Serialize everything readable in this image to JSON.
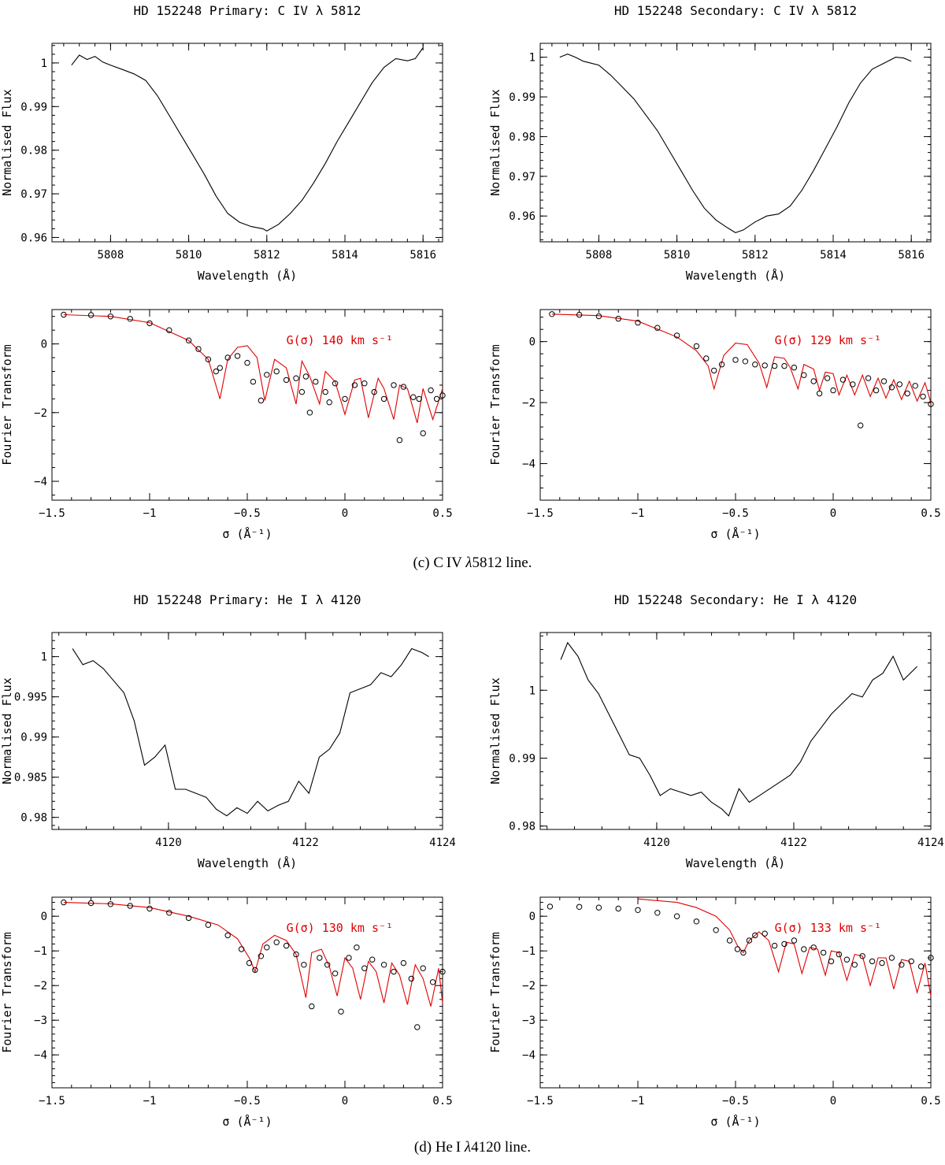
{
  "colors": {
    "axis": "#000000",
    "observed": "#000000",
    "model": "#e00000"
  },
  "captions": {
    "c": {
      "label": "(c)",
      "ion": "C IV",
      "lambda": "λ",
      "wavelength": "5812",
      "suffix": "line."
    },
    "d": {
      "label": "(d)",
      "ion": "He I",
      "lambda": "λ",
      "wavelength": "4120",
      "suffix": "line."
    }
  },
  "chart_data": [
    {
      "id": "c-primary-spec",
      "type": "line",
      "title": "HD 152248 Primary: C IV λ 5812",
      "xlabel": "Wavelength (Å)",
      "ylabel": "Normalised Flux",
      "xlim": [
        5806.5,
        5816.5
      ],
      "ylim": [
        0.959,
        1.0045
      ],
      "xticks": [
        5808,
        5810,
        5812,
        5814,
        5816
      ],
      "xtick_labels": [
        "5808",
        "5810",
        "5812",
        "5814",
        "5816"
      ],
      "yticks": [
        0.96,
        0.97,
        0.98,
        0.99,
        1
      ],
      "ytick_labels": [
        "0.96",
        "0.97",
        "0.98",
        "0.99",
        "1"
      ],
      "x": [
        5807.0,
        5807.2,
        5807.4,
        5807.6,
        5807.8,
        5808.0,
        5808.3,
        5808.6,
        5808.9,
        5809.2,
        5809.5,
        5809.8,
        5810.1,
        5810.4,
        5810.7,
        5811.0,
        5811.3,
        5811.6,
        5811.9,
        5812.0,
        5812.3,
        5812.6,
        5812.9,
        5813.2,
        5813.5,
        5813.8,
        5814.1,
        5814.4,
        5814.7,
        5815.0,
        5815.3,
        5815.6,
        5815.8,
        5816.0
      ],
      "y": [
        0.9995,
        1.0018,
        1.0008,
        1.0015,
        1.0002,
        0.9995,
        0.9985,
        0.9975,
        0.996,
        0.9925,
        0.988,
        0.9835,
        0.979,
        0.9745,
        0.9695,
        0.9655,
        0.9635,
        0.9625,
        0.962,
        0.9615,
        0.963,
        0.9655,
        0.9685,
        0.9725,
        0.977,
        0.982,
        0.9865,
        0.991,
        0.9955,
        0.999,
        1.001,
        1.0005,
        1.001,
        1.0035
      ],
      "series_color": "observed"
    },
    {
      "id": "c-secondary-spec",
      "type": "line",
      "title": "HD 152248 Secondary: C IV λ 5812",
      "xlabel": "Wavelength (Å)",
      "ylabel": "Normalised Flux",
      "xlim": [
        5806.5,
        5816.5
      ],
      "ylim": [
        0.9535,
        1.0035
      ],
      "xticks": [
        5808,
        5810,
        5812,
        5814,
        5816
      ],
      "xtick_labels": [
        "5808",
        "5810",
        "5812",
        "5814",
        "5816"
      ],
      "yticks": [
        0.96,
        0.97,
        0.98,
        0.99,
        1
      ],
      "ytick_labels": [
        "0.96",
        "0.97",
        "0.98",
        "0.99",
        "1"
      ],
      "x": [
        5807.0,
        5807.2,
        5807.4,
        5807.6,
        5807.8,
        5808.0,
        5808.3,
        5808.6,
        5808.9,
        5809.2,
        5809.5,
        5809.8,
        5810.1,
        5810.4,
        5810.7,
        5811.0,
        5811.3,
        5811.5,
        5811.7,
        5812.0,
        5812.3,
        5812.6,
        5812.9,
        5813.2,
        5813.5,
        5813.8,
        5814.1,
        5814.4,
        5814.7,
        5815.0,
        5815.3,
        5815.6,
        5815.8,
        5816.0
      ],
      "y": [
        1.0,
        1.0008,
        1.0,
        0.999,
        0.9985,
        0.998,
        0.9955,
        0.9925,
        0.9895,
        0.9855,
        0.9815,
        0.9765,
        0.9715,
        0.9665,
        0.962,
        0.959,
        0.957,
        0.9558,
        0.9565,
        0.9585,
        0.96,
        0.9605,
        0.9625,
        0.9665,
        0.9715,
        0.977,
        0.9825,
        0.9885,
        0.9935,
        0.997,
        0.9985,
        1.0,
        0.9998,
        0.999
      ],
      "series_color": "observed"
    },
    {
      "id": "c-primary-ft",
      "type": "scatter+line",
      "xlabel": "σ (Å⁻¹)",
      "ylabel": "Fourier Transform",
      "annotation": "G(σ) 140 km s⁻¹",
      "xlim": [
        -1.5,
        0.5
      ],
      "ylim": [
        -4.55,
        1.0
      ],
      "xticks": [
        -1.5,
        -1,
        -0.5,
        0,
        0.5
      ],
      "xtick_labels": [
        "−1.5",
        "−1",
        "−0.5",
        "0",
        "0.5"
      ],
      "yticks": [
        -4,
        -2,
        0
      ],
      "ytick_labels": [
        "−4",
        "−2",
        "0"
      ],
      "observed_x": [
        -1.44,
        -1.3,
        -1.2,
        -1.1,
        -1.0,
        -0.9,
        -0.8,
        -0.75,
        -0.7,
        -0.66,
        -0.64,
        -0.6,
        -0.55,
        -0.5,
        -0.47,
        -0.43,
        -0.4,
        -0.35,
        -0.3,
        -0.25,
        -0.22,
        -0.2,
        -0.18,
        -0.15,
        -0.1,
        -0.08,
        -0.05,
        0.0,
        0.05,
        0.1,
        0.15,
        0.2,
        0.25,
        0.28,
        0.3,
        0.35,
        0.38,
        0.4,
        0.44,
        0.47,
        0.5
      ],
      "observed_y": [
        0.85,
        0.84,
        0.8,
        0.73,
        0.6,
        0.4,
        0.1,
        -0.15,
        -0.45,
        -0.8,
        -0.7,
        -0.4,
        -0.35,
        -0.55,
        -1.1,
        -1.65,
        -0.9,
        -0.8,
        -1.05,
        -1.0,
        -1.4,
        -0.95,
        -2.0,
        -1.1,
        -1.4,
        -1.7,
        -1.15,
        -1.6,
        -1.2,
        -1.15,
        -1.4,
        -1.6,
        -1.2,
        -2.8,
        -1.25,
        -1.55,
        -1.6,
        -2.6,
        -1.35,
        -1.6,
        -1.5
      ],
      "model_x": [
        -1.44,
        -1.2,
        -1.0,
        -0.8,
        -0.7,
        -0.64,
        -0.6,
        -0.55,
        -0.5,
        -0.45,
        -0.41,
        -0.36,
        -0.3,
        -0.25,
        -0.22,
        -0.18,
        -0.13,
        -0.1,
        -0.05,
        0.0,
        0.05,
        0.08,
        0.12,
        0.17,
        0.2,
        0.25,
        0.28,
        0.32,
        0.37,
        0.4,
        0.45,
        0.5
      ],
      "model_y": [
        0.85,
        0.8,
        0.62,
        0.1,
        -0.45,
        -1.6,
        -0.45,
        -0.1,
        -0.05,
        -0.4,
        -1.65,
        -0.45,
        -0.7,
        -1.75,
        -0.5,
        -0.95,
        -1.75,
        -0.8,
        -1.1,
        -2.05,
        -1.05,
        -1.0,
        -2.15,
        -1.0,
        -1.3,
        -2.2,
        -1.2,
        -1.3,
        -2.3,
        -1.3,
        -2.2,
        -1.3
      ],
      "legend": "model"
    },
    {
      "id": "c-secondary-ft",
      "type": "scatter+line",
      "xlabel": "σ (Å⁻¹)",
      "ylabel": "Fourier Transform",
      "annotation": "G(σ) 129 km s⁻¹",
      "xlim": [
        -1.5,
        0.5
      ],
      "ylim": [
        -5.2,
        1.05
      ],
      "xticks": [
        -1.5,
        -1,
        -0.5,
        0,
        0.5
      ],
      "xtick_labels": [
        "−1.5",
        "−1",
        "−0.5",
        "0",
        "0.5"
      ],
      "yticks": [
        -4,
        -2,
        0
      ],
      "ytick_labels": [
        "−4",
        "−2",
        "0"
      ],
      "observed_x": [
        -1.44,
        -1.3,
        -1.2,
        -1.1,
        -1.0,
        -0.9,
        -0.8,
        -0.7,
        -0.65,
        -0.61,
        -0.57,
        -0.5,
        -0.45,
        -0.4,
        -0.35,
        -0.3,
        -0.25,
        -0.2,
        -0.15,
        -0.1,
        -0.07,
        -0.03,
        0.0,
        0.05,
        0.1,
        0.14,
        0.18,
        0.22,
        0.26,
        0.3,
        0.34,
        0.38,
        0.42,
        0.46,
        0.5
      ],
      "observed_y": [
        0.9,
        0.88,
        0.83,
        0.75,
        0.62,
        0.45,
        0.2,
        -0.15,
        -0.55,
        -0.95,
        -0.75,
        -0.6,
        -0.65,
        -0.75,
        -0.78,
        -0.8,
        -0.8,
        -0.85,
        -1.1,
        -1.3,
        -1.7,
        -1.2,
        -1.6,
        -1.25,
        -1.4,
        -2.75,
        -1.2,
        -1.6,
        -1.3,
        -1.5,
        -1.4,
        -1.7,
        -1.45,
        -1.8,
        -2.05
      ],
      "model_x": [
        -1.44,
        -1.2,
        -1.0,
        -0.8,
        -0.7,
        -0.64,
        -0.61,
        -0.56,
        -0.5,
        -0.44,
        -0.38,
        -0.34,
        -0.3,
        -0.25,
        -0.22,
        -0.18,
        -0.15,
        -0.1,
        -0.07,
        -0.04,
        0.0,
        0.03,
        0.07,
        0.11,
        0.15,
        0.19,
        0.23,
        0.27,
        0.31,
        0.35,
        0.39,
        0.43,
        0.47,
        0.5
      ],
      "model_y": [
        0.9,
        0.85,
        0.67,
        0.15,
        -0.3,
        -0.8,
        -1.55,
        -0.45,
        -0.05,
        -0.1,
        -0.7,
        -1.5,
        -0.5,
        -0.55,
        -0.85,
        -1.55,
        -0.75,
        -0.9,
        -1.6,
        -1.0,
        -1.05,
        -1.75,
        -1.1,
        -1.75,
        -1.1,
        -1.8,
        -1.2,
        -1.85,
        -1.25,
        -1.9,
        -1.3,
        -1.95,
        -1.35,
        -2.0
      ],
      "legend": "model"
    },
    {
      "id": "d-primary-spec",
      "type": "line",
      "title": "HD 152248 Primary: He I λ 4120",
      "xlabel": "Wavelength (Å)",
      "ylabel": "Normalised Flux",
      "xlim": [
        4118.3,
        4124.0
      ],
      "ylim": [
        0.9785,
        1.003
      ],
      "xticks": [
        4120,
        4122,
        4124
      ],
      "xtick_labels": [
        "4120",
        "4122",
        "4124"
      ],
      "yticks": [
        0.98,
        0.985,
        0.99,
        0.995,
        1
      ],
      "ytick_labels": [
        "0.98",
        "0.985",
        "0.99",
        "0.995",
        "1"
      ],
      "x": [
        4118.6,
        4118.75,
        4118.9,
        4119.05,
        4119.2,
        4119.35,
        4119.5,
        4119.65,
        4119.8,
        4119.95,
        4120.1,
        4120.25,
        4120.4,
        4120.55,
        4120.7,
        4120.85,
        4121.0,
        4121.15,
        4121.3,
        4121.45,
        4121.6,
        4121.75,
        4121.9,
        4122.05,
        4122.2,
        4122.35,
        4122.5,
        4122.65,
        4122.8,
        4122.95,
        4123.1,
        4123.25,
        4123.4,
        4123.55,
        4123.7,
        4123.8
      ],
      "y": [
        1.001,
        0.999,
        0.9995,
        0.9985,
        0.997,
        0.9955,
        0.992,
        0.9865,
        0.9875,
        0.989,
        0.9835,
        0.9835,
        0.983,
        0.9825,
        0.981,
        0.9802,
        0.9812,
        0.9805,
        0.982,
        0.9808,
        0.9815,
        0.982,
        0.9845,
        0.983,
        0.9875,
        0.9885,
        0.9905,
        0.9955,
        0.996,
        0.9965,
        0.998,
        0.9975,
        0.999,
        1.001,
        1.0005,
        1.0
      ],
      "series_color": "observed"
    },
    {
      "id": "d-secondary-spec",
      "type": "line",
      "title": "HD 152248 Secondary: He I λ 4120",
      "xlabel": "Wavelength (Å)",
      "ylabel": "Normalised Flux",
      "xlim": [
        4118.3,
        4124.0
      ],
      "ylim": [
        0.9795,
        1.0085
      ],
      "xticks": [
        4120,
        4122,
        4124
      ],
      "xtick_labels": [
        "4120",
        "4122",
        "4124"
      ],
      "yticks": [
        0.98,
        0.99,
        1
      ],
      "ytick_labels": [
        "0.98",
        "0.99",
        "1"
      ],
      "x": [
        4118.6,
        4118.7,
        4118.85,
        4119.0,
        4119.15,
        4119.3,
        4119.45,
        4119.6,
        4119.75,
        4119.9,
        4120.05,
        4120.2,
        4120.35,
        4120.5,
        4120.65,
        4120.8,
        4120.95,
        4121.05,
        4121.2,
        4121.35,
        4121.5,
        4121.65,
        4121.8,
        4121.95,
        4122.1,
        4122.25,
        4122.4,
        4122.55,
        4122.7,
        4122.85,
        4123.0,
        4123.15,
        4123.3,
        4123.45,
        4123.6,
        4123.8
      ],
      "y": [
        1.0045,
        1.007,
        1.005,
        1.0015,
        0.9995,
        0.9965,
        0.9935,
        0.9905,
        0.99,
        0.9875,
        0.9845,
        0.9855,
        0.985,
        0.9845,
        0.985,
        0.9835,
        0.9825,
        0.9815,
        0.9855,
        0.9835,
        0.9845,
        0.9855,
        0.9865,
        0.9875,
        0.9895,
        0.9925,
        0.9945,
        0.9965,
        0.998,
        0.9995,
        0.999,
        1.0015,
        1.0025,
        1.005,
        1.0015,
        1.0035
      ],
      "series_color": "observed"
    },
    {
      "id": "d-primary-ft",
      "type": "scatter+line",
      "xlabel": "σ (Å⁻¹)",
      "ylabel": "Fourier Transform",
      "annotation": "G(σ) 130 km s⁻¹",
      "xlim": [
        -1.5,
        0.5
      ],
      "ylim": [
        -4.95,
        0.55
      ],
      "xticks": [
        -1.5,
        -1,
        -0.5,
        0,
        0.5
      ],
      "xtick_labels": [
        "−1.5",
        "−1",
        "−0.5",
        "0",
        "0.5"
      ],
      "yticks": [
        -4,
        -3,
        -2,
        -1,
        0
      ],
      "ytick_labels": [
        "−4",
        "−3",
        "−2",
        "−1",
        "0"
      ],
      "observed_x": [
        -1.44,
        -1.3,
        -1.2,
        -1.1,
        -1.0,
        -0.9,
        -0.8,
        -0.7,
        -0.6,
        -0.53,
        -0.49,
        -0.46,
        -0.43,
        -0.4,
        -0.35,
        -0.3,
        -0.25,
        -0.21,
        -0.17,
        -0.13,
        -0.09,
        -0.05,
        -0.02,
        0.02,
        0.06,
        0.1,
        0.14,
        0.2,
        0.25,
        0.3,
        0.34,
        0.37,
        0.4,
        0.45,
        0.5
      ],
      "observed_y": [
        0.4,
        0.38,
        0.35,
        0.3,
        0.22,
        0.1,
        -0.05,
        -0.25,
        -0.55,
        -0.95,
        -1.35,
        -1.55,
        -1.15,
        -0.9,
        -0.75,
        -0.85,
        -1.1,
        -1.4,
        -2.6,
        -1.2,
        -1.4,
        -1.65,
        -2.75,
        -1.2,
        -0.9,
        -1.5,
        -1.25,
        -1.4,
        -1.6,
        -1.35,
        -1.8,
        -3.2,
        -1.5,
        -1.9,
        -1.6
      ],
      "model_x": [
        -1.44,
        -1.2,
        -1.0,
        -0.8,
        -0.65,
        -0.55,
        -0.49,
        -0.46,
        -0.42,
        -0.36,
        -0.3,
        -0.25,
        -0.2,
        -0.17,
        -0.12,
        -0.08,
        -0.04,
        0.0,
        0.04,
        0.08,
        0.12,
        0.16,
        0.2,
        0.24,
        0.28,
        0.32,
        0.36,
        0.4,
        0.44,
        0.48,
        0.5
      ],
      "model_y": [
        0.4,
        0.36,
        0.25,
        0.0,
        -0.25,
        -0.65,
        -1.2,
        -1.6,
        -0.8,
        -0.55,
        -0.7,
        -1.1,
        -2.35,
        -1.05,
        -0.95,
        -1.45,
        -2.3,
        -1.2,
        -1.5,
        -2.4,
        -1.3,
        -1.6,
        -2.5,
        -1.35,
        -1.7,
        -2.55,
        -1.4,
        -1.8,
        -2.6,
        -1.5,
        -2.5
      ],
      "legend": "model"
    },
    {
      "id": "d-secondary-ft",
      "type": "scatter+line",
      "xlabel": "σ (Å⁻¹)",
      "ylabel": "Fourier Transform",
      "annotation": "G(σ) 133 km s⁻¹",
      "xlim": [
        -1.5,
        0.5
      ],
      "ylim": [
        -4.95,
        0.55
      ],
      "xticks": [
        -1.5,
        -1,
        -0.5,
        0,
        0.5
      ],
      "xtick_labels": [
        "−1.5",
        "−1",
        "−0.5",
        "0",
        "0.5"
      ],
      "yticks": [
        -4,
        -3,
        -2,
        -1,
        0
      ],
      "ytick_labels": [
        "−4",
        "−3",
        "−2",
        "−1",
        "0"
      ],
      "observed_x": [
        -1.45,
        -1.3,
        -1.2,
        -1.1,
        -1.0,
        -0.9,
        -0.8,
        -0.7,
        -0.6,
        -0.53,
        -0.49,
        -0.46,
        -0.43,
        -0.4,
        -0.35,
        -0.3,
        -0.25,
        -0.2,
        -0.15,
        -0.1,
        -0.05,
        -0.01,
        0.03,
        0.07,
        0.11,
        0.15,
        0.2,
        0.25,
        0.3,
        0.35,
        0.4,
        0.45,
        0.5
      ],
      "observed_y": [
        0.28,
        0.27,
        0.25,
        0.22,
        0.18,
        0.1,
        0.0,
        -0.15,
        -0.4,
        -0.7,
        -0.95,
        -1.05,
        -0.7,
        -0.55,
        -0.5,
        -0.85,
        -0.8,
        -0.7,
        -0.95,
        -0.9,
        -1.05,
        -1.3,
        -1.1,
        -1.25,
        -1.4,
        -1.15,
        -1.3,
        -1.35,
        -1.2,
        -1.4,
        -1.3,
        -1.45,
        -1.2
      ],
      "model_x": [
        -1.0,
        -0.8,
        -0.7,
        -0.6,
        -0.53,
        -0.49,
        -0.46,
        -0.43,
        -0.38,
        -0.33,
        -0.28,
        -0.24,
        -0.2,
        -0.16,
        -0.12,
        -0.08,
        -0.04,
        -0.01,
        0.03,
        0.07,
        0.11,
        0.15,
        0.19,
        0.23,
        0.27,
        0.31,
        0.35,
        0.39,
        0.43,
        0.47,
        0.5
      ],
      "model_y": [
        0.5,
        0.4,
        0.25,
        0.0,
        -0.4,
        -0.85,
        -1.05,
        -0.7,
        -0.45,
        -0.7,
        -1.6,
        -0.75,
        -0.8,
        -1.65,
        -0.9,
        -0.95,
        -1.7,
        -1.0,
        -1.05,
        -1.85,
        -1.1,
        -1.15,
        -2.0,
        -1.2,
        -1.2,
        -2.1,
        -1.25,
        -1.3,
        -2.2,
        -1.35,
        -2.3
      ],
      "legend": "model"
    }
  ]
}
